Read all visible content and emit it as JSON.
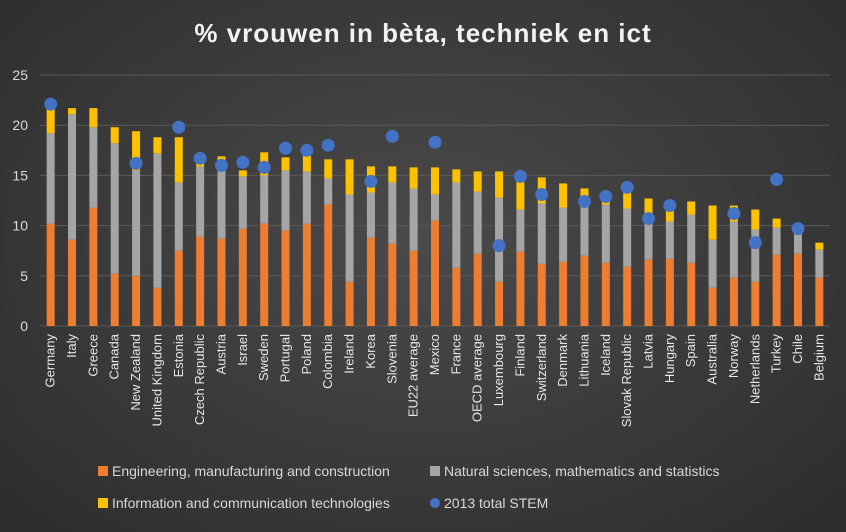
{
  "chart_data": {
    "type": "bar",
    "stacked": true,
    "title": "% vrouwen in bèta, techniek en ict",
    "ylim": [
      0,
      25
    ],
    "yticks": [
      0,
      5,
      10,
      15,
      20,
      25
    ],
    "grid": true,
    "legend_position": "bottom",
    "categories": [
      "Germany",
      "Italy",
      "Greece",
      "Canada",
      "New Zealand",
      "United Kingdom",
      "Estonia",
      "Czech Republic",
      "Austria",
      "Israel",
      "Sweden",
      "Portugal",
      "Poland",
      "Colombia",
      "Ireland",
      "Korea",
      "Slovenia",
      "EU22 average",
      "Mexico",
      "France",
      "OECD average",
      "Luxembourg",
      "Finland",
      "Switzerland",
      "Denmark",
      "Lithuania",
      "Iceland",
      "Slovak Republic",
      "Latvia",
      "Hungary",
      "Spain",
      "Australia",
      "Norway",
      "Netherlands",
      "Turkey",
      "Chile",
      "Belgium"
    ],
    "series": [
      {
        "name": "Engineering, manufacturing and construction",
        "color": "#ed7d31",
        "values": [
          10.2,
          8.6,
          11.8,
          5.2,
          5.0,
          3.8,
          7.5,
          8.9,
          8.7,
          9.7,
          10.2,
          9.5,
          10.2,
          12.1,
          4.4,
          8.8,
          8.2,
          7.5,
          10.5,
          5.8,
          7.2,
          4.4,
          7.4,
          6.2,
          6.4,
          7.0,
          6.3,
          5.9,
          6.6,
          6.7,
          6.3,
          3.8,
          4.8,
          4.4,
          7.1,
          7.2,
          4.8
        ]
      },
      {
        "name": "Natural sciences, mathematics and statistics",
        "color": "#a5a5a5",
        "values": [
          9.0,
          12.5,
          8.0,
          13.0,
          10.5,
          13.4,
          6.8,
          7.0,
          7.0,
          5.2,
          4.8,
          6.0,
          5.2,
          2.6,
          8.7,
          4.5,
          6.1,
          6.2,
          2.6,
          8.5,
          6.2,
          8.4,
          4.2,
          6.0,
          5.4,
          4.8,
          5.8,
          5.8,
          3.8,
          3.7,
          4.8,
          4.8,
          5.6,
          5.2,
          2.7,
          2.1,
          2.8
        ]
      },
      {
        "name": "Information and communication technologies",
        "color": "#ffc000",
        "values": [
          2.5,
          0.6,
          1.9,
          1.6,
          3.9,
          1.6,
          4.5,
          0.6,
          1.2,
          0.6,
          2.3,
          1.3,
          1.6,
          1.9,
          3.5,
          2.6,
          1.6,
          2.1,
          2.7,
          1.3,
          2.0,
          2.6,
          3.7,
          2.6,
          2.4,
          1.9,
          1.3,
          2.0,
          2.3,
          2.1,
          1.3,
          3.4,
          1.6,
          2.0,
          0.9,
          0.5,
          0.7
        ]
      },
      {
        "name": "2013 total STEM",
        "color": "#4472c4",
        "type": "scatter",
        "values": [
          22.1,
          null,
          null,
          null,
          16.2,
          null,
          19.8,
          16.7,
          16.0,
          16.3,
          15.8,
          17.7,
          17.5,
          18.0,
          null,
          14.4,
          18.9,
          null,
          18.3,
          null,
          null,
          8.0,
          14.9,
          13.1,
          null,
          12.4,
          12.9,
          13.8,
          10.7,
          12.0,
          null,
          null,
          11.2,
          8.3,
          14.6,
          9.7,
          null
        ]
      }
    ]
  }
}
